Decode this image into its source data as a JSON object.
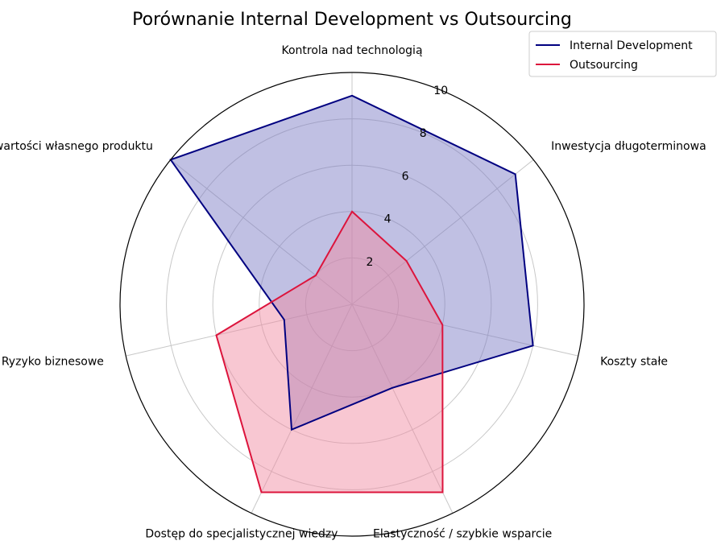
{
  "chart_data": {
    "type": "radar",
    "title": "Porównanie Internal Development vs Outsourcing",
    "axes": [
      "Kontrola nad technologią",
      "Inwestycja długoterminowa",
      "Koszty stałe",
      "Elastyczność / szybkie wsparcie",
      "Dostęp do specjalistycznej wiedzy",
      "Ryzyko biznesowe",
      "Potencjał budowy wartości własnego produktu"
    ],
    "rlim": [
      0,
      10
    ],
    "rticks": [
      "2",
      "4",
      "6",
      "8",
      "10"
    ],
    "rtick_values": [
      2,
      4,
      6,
      8,
      10
    ],
    "grid": true,
    "legend": "top-right",
    "series": [
      {
        "name": "Internal Development",
        "values": [
          9,
          9,
          8,
          4,
          6,
          3,
          10
        ],
        "color": "#000080",
        "fill": "#7b7bc4"
      },
      {
        "name": "Outsourcing",
        "values": [
          4,
          3,
          4,
          9,
          9,
          6,
          2
        ],
        "color": "#dc143c",
        "fill": "#f08aa0"
      }
    ]
  }
}
